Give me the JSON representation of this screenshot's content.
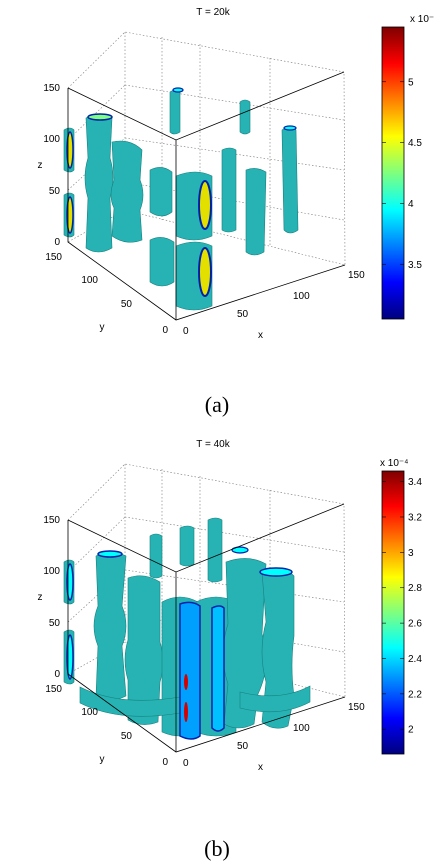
{
  "panels": [
    {
      "id": "a",
      "title": "T = 20k",
      "caption": "(a)",
      "colorbar": {
        "exponent": "x 10⁻⁴",
        "ticks": [
          "5",
          "4.5",
          "4",
          "3.5"
        ],
        "tick_values": [
          5,
          4.5,
          4,
          3.5
        ],
        "range": [
          3.05,
          5.45
        ]
      },
      "axes": {
        "z_label": "z",
        "y_label": "y",
        "x_label": "x",
        "z_ticks": [
          "0",
          "50",
          "100",
          "150"
        ],
        "y_ticks": [
          "0",
          "50",
          "100",
          "150"
        ],
        "x_ticks": [
          "0",
          "50",
          "100",
          "150"
        ]
      }
    },
    {
      "id": "b",
      "title": "T = 40k",
      "caption": "(b)",
      "colorbar": {
        "exponent": "x 10⁻⁴",
        "ticks": [
          "3.4",
          "3.2",
          "3",
          "2.8",
          "2.6",
          "2.4",
          "2.2",
          "2"
        ],
        "tick_values": [
          3.4,
          3.2,
          3.0,
          2.8,
          2.6,
          2.4,
          2.2,
          2.0
        ],
        "range": [
          1.86,
          3.46
        ]
      },
      "axes": {
        "z_label": "z",
        "y_label": "y",
        "x_label": "x",
        "z_ticks": [
          "0",
          "50",
          "100",
          "150"
        ],
        "y_ticks": [
          "0",
          "50",
          "100",
          "150"
        ],
        "x_ticks": [
          "0",
          "50",
          "100",
          "150"
        ]
      }
    }
  ],
  "colors": {
    "isosurface": "#27b3b3",
    "isosurface_edge": "#17807f",
    "colormap": [
      "#00007f",
      "#0000ff",
      "#007fff",
      "#00ffff",
      "#7fff7f",
      "#ffff00",
      "#ff7f00",
      "#ff0000",
      "#7f0000"
    ]
  }
}
